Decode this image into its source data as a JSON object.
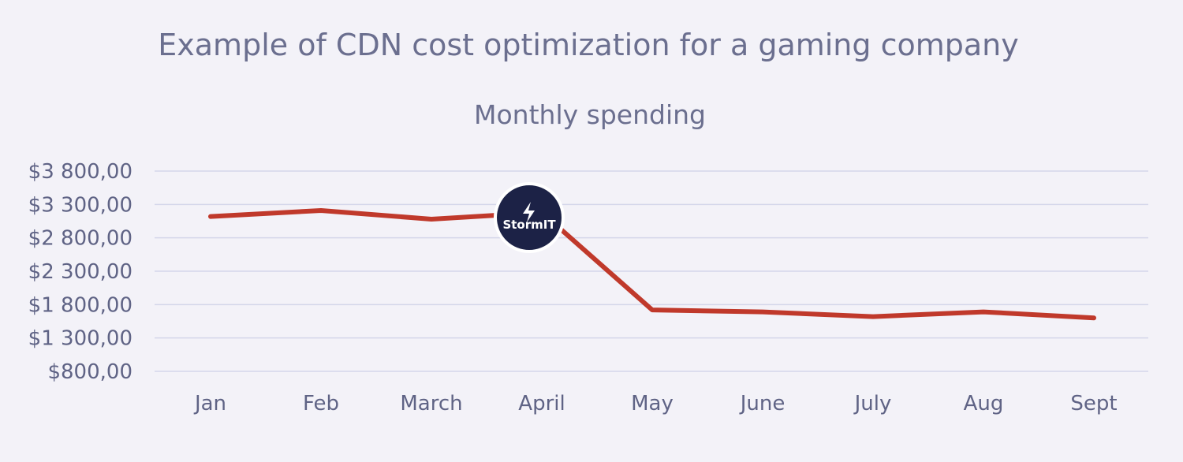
{
  "chart_data": {
    "type": "line",
    "title": "Example of CDN cost optimization for a gaming company",
    "subtitle": "Monthly spending",
    "categories": [
      "Jan",
      "Feb",
      "March",
      "April",
      "May",
      "June",
      "July",
      "Aug",
      "Sept"
    ],
    "series": [
      {
        "values": [
          3120,
          3210,
          3080,
          3180,
          1720,
          1690,
          1620,
          1690,
          1600
        ],
        "color": "#c0392b"
      }
    ],
    "y_ticks": [
      800,
      1300,
      1800,
      2300,
      2800,
      3300,
      3800
    ],
    "y_tick_labels": [
      "$800,00",
      "$1 300,00",
      "$1 800,00",
      "$2 300,00",
      "$2 800,00",
      "$3 300,00",
      "$3 800,00"
    ],
    "ylim": [
      800,
      3800
    ],
    "grid": true,
    "legend": "none",
    "logo": {
      "text": "StormIT",
      "icon": "lightning-bolt-icon",
      "background": "#1c2246"
    }
  }
}
